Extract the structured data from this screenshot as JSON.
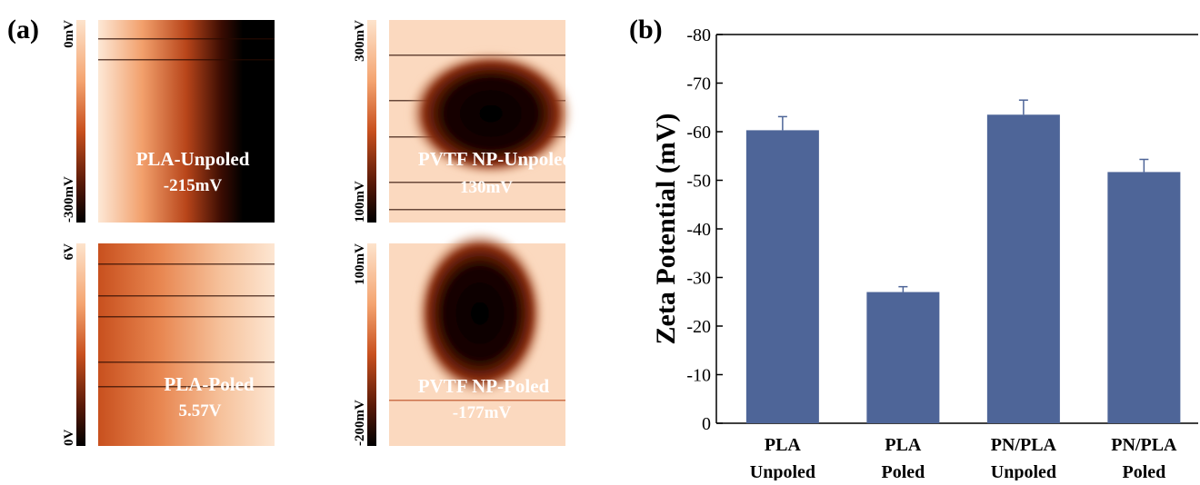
{
  "panel_a": {
    "label": "(a)",
    "images": [
      {
        "title": "PLA-Unpoled",
        "value": "-215mV",
        "scale_max": "0mV",
        "scale_min": "-300mV"
      },
      {
        "title": "PVTF NP-Unpoled",
        "value": "130mV",
        "scale_max": "300mV",
        "scale_min": "100mV"
      },
      {
        "title": "PLA-Poled",
        "value": "5.57V",
        "scale_max": "6V",
        "scale_min": "0V"
      },
      {
        "title": "PVTF NP-Poled",
        "value": "-177mV",
        "scale_max": "100mV",
        "scale_min": "-200mV"
      }
    ]
  },
  "chart_data": {
    "type": "bar",
    "panel_label": "(b)",
    "y_label": "Zeta Potential (mV)",
    "categories": [
      [
        "PLA",
        "Unpoled"
      ],
      [
        "PLA",
        "Poled"
      ],
      [
        "PN/PLA",
        "Unpoled"
      ],
      [
        "PN/PLA",
        "Poled"
      ]
    ],
    "values": [
      -60.3,
      -27,
      -63.5,
      -51.7
    ],
    "errors": [
      2.8,
      1.1,
      3.0,
      2.6
    ],
    "color": "#4e6598",
    "ylim": [
      0,
      -80
    ],
    "yticks": [
      0,
      -10,
      -20,
      -30,
      -40,
      -50,
      -60,
      -70,
      -80
    ]
  }
}
